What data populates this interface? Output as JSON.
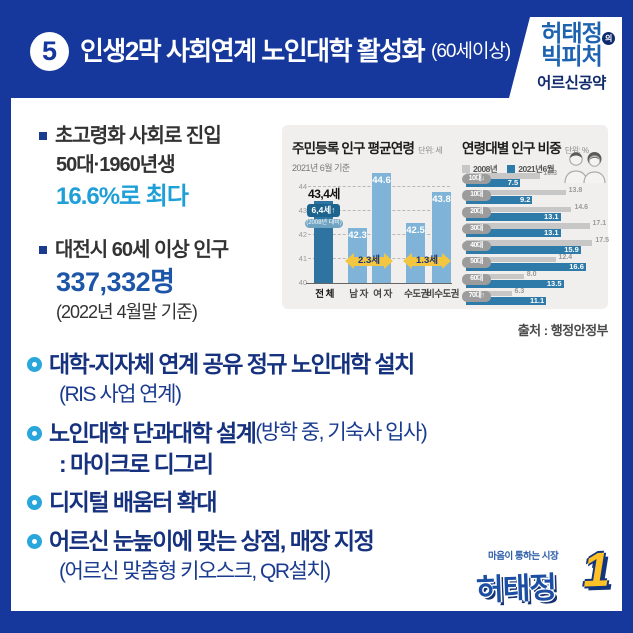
{
  "header": {
    "number": "5",
    "title": "인생2막 사회연계 노인대학 활성화",
    "title_suffix": "(60세이상)",
    "badge": {
      "line1": "허태정",
      "line1_mark": "의",
      "line2": "빅피처",
      "line3": "어르신공약"
    }
  },
  "facts": [
    {
      "line1": "초고령화 사회로 진입",
      "line2": "50대·1960년생",
      "highlight": "16.6%로 최다"
    },
    {
      "line1": "대전시 60세 이상 인구",
      "highlight": "337,332명",
      "note": "(2022년 4월말 기준)"
    }
  ],
  "chart_data": [
    {
      "type": "bar",
      "title": "주민등록 인구 평균연령",
      "unit": "단위: 세",
      "subtitle": "2021년 6월 기준",
      "categories": [
        "전 체",
        "남 자",
        "여 자",
        "수도권",
        "비수도권"
      ],
      "values": [
        43.4,
        42.3,
        44.6,
        42.5,
        43.8
      ],
      "ylim": [
        40,
        45
      ],
      "yticks": [
        40,
        41,
        42,
        43,
        44
      ],
      "grid": "dashed",
      "annotations": {
        "total_label": "43,4세",
        "delta_label": "6,4세↑",
        "delta_note": "(2008년 대비)",
        "gap_labels": [
          "2.3세",
          "1.3세"
        ]
      }
    },
    {
      "type": "bar-horizontal",
      "title": "연령대별 인구 비중",
      "unit": "단위: %",
      "legend": [
        "2008년",
        "2021년6월"
      ],
      "legend_colors": [
        "#C7C7C7",
        "#2E7BA9"
      ],
      "categories": [
        "10대↓",
        "10대",
        "20대",
        "30대",
        "40대",
        "50대",
        "60대",
        "70대↑"
      ],
      "series": [
        {
          "name": "2008년",
          "values": [
            10.3,
            13.8,
            14.6,
            17.1,
            17.5,
            12.4,
            8.0,
            6.3
          ]
        },
        {
          "name": "2021년6월",
          "values": [
            7.5,
            9.2,
            13.1,
            13.1,
            15.9,
            16.6,
            13.5,
            11.1
          ]
        }
      ],
      "xlim": [
        0,
        18
      ]
    }
  ],
  "source": "출처 : 행정안정부",
  "bullets": [
    {
      "main": "대학-지자체 연계 공유 정규 노인대학 설치",
      "sub": "(RIS 사업 연계)"
    },
    {
      "main": "노인대학 단과대학 설계",
      "main_suffix": "(방학 중, 기숙사 입사)",
      "sub_bold": ": 마이크로 디그리"
    },
    {
      "main": "디지털 배움터 확대"
    },
    {
      "main": "어르신 눈높이에 맞는 상점, 매장 지정",
      "sub": "(어르신 맞춤형 키오스크, QR설치)"
    }
  ],
  "logo": {
    "slogan": "마음이 통하는 시장",
    "name": "허태정",
    "number": "1"
  },
  "icons": {
    "couple": "couple-icon",
    "bullet": "ring-bullet-icon"
  },
  "colors": {
    "frame_blue": "#16379B",
    "cyan_accent": "#1E9FD8",
    "royal_accent": "#1D55A8",
    "bar_dark": "#2F74A0",
    "bar_light": "#7FB4D8",
    "bar2_blue": "#2E7BA9",
    "bar2_gray": "#C7C7C7",
    "arrow_yellow": "#F2C640"
  }
}
